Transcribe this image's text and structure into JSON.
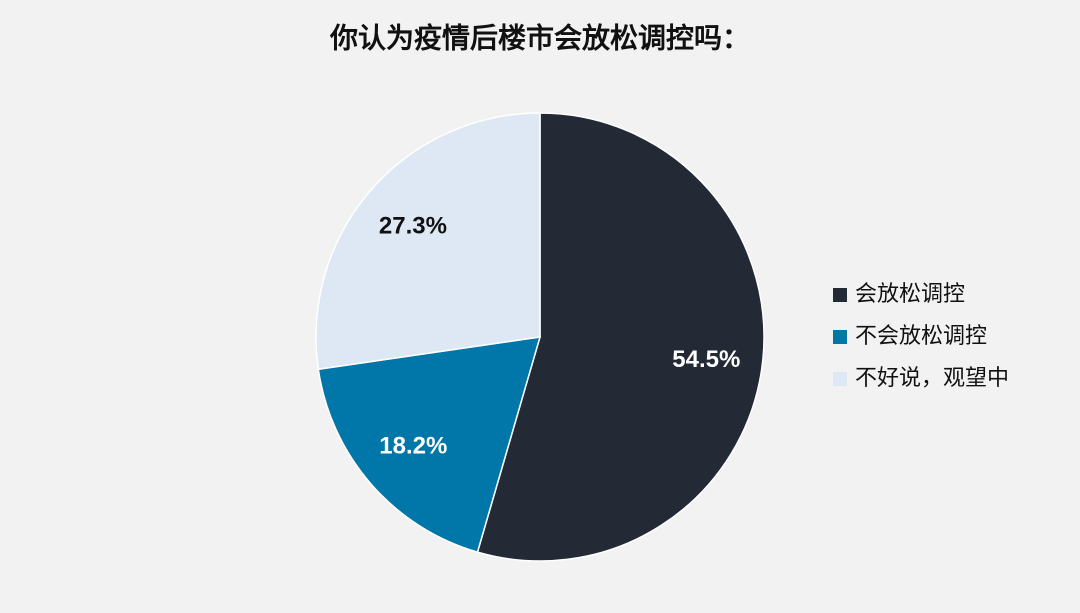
{
  "chart_data": {
    "type": "pie",
    "title": "你认为疫情后楼市会放松调控吗：",
    "categories": [
      "会放松调控",
      "不会放松调控",
      "不好说，观望中"
    ],
    "values": [
      54.5,
      18.2,
      27.3
    ],
    "value_labels": [
      "54.5%",
      "18.2%",
      "27.3%"
    ],
    "colors": [
      "#232a35",
      "#0077a8",
      "#dde8f4"
    ],
    "legend": "right"
  }
}
